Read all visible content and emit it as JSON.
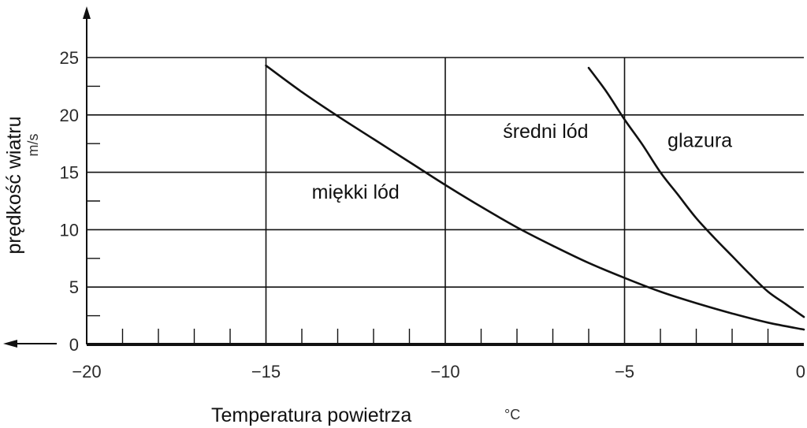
{
  "chart_data": {
    "type": "line",
    "xlabel": "Temperatura powietrza",
    "xunit": "°C",
    "ylabel": "prędkość wiatru",
    "yunit": "m/s",
    "xlim": [
      -20,
      0
    ],
    "ylim": [
      0,
      25
    ],
    "x_ticks": [
      -20,
      -15,
      -10,
      -5,
      0
    ],
    "x_tick_labels": [
      "−20",
      "−15",
      "−10",
      "−5",
      "0"
    ],
    "y_ticks": [
      0,
      5,
      10,
      15,
      20,
      25
    ],
    "y_tick_labels": [
      "0",
      "5",
      "10",
      "15",
      "20",
      "25"
    ],
    "grid": true,
    "regions": [
      {
        "label": "miękki lód",
        "x": -12.5,
        "y": 12.7
      },
      {
        "label": "średni lód",
        "x": -7.2,
        "y": 18
      },
      {
        "label": "glazura",
        "x": -2.9,
        "y": 17.2
      }
    ],
    "series": [
      {
        "x": [
          -15,
          -14,
          -13,
          -12,
          -11,
          -10,
          -9,
          -8,
          -7,
          -6,
          -5,
          -4,
          -3,
          -2,
          -1,
          0
        ],
        "y": [
          24.3,
          22.0,
          19.9,
          17.9,
          15.9,
          13.9,
          12.0,
          10.2,
          8.6,
          7.1,
          5.8,
          4.6,
          3.6,
          2.7,
          1.9,
          1.3
        ]
      },
      {
        "x": [
          -6,
          -5.5,
          -5,
          -4.5,
          -4,
          -3.5,
          -3,
          -2.5,
          -2,
          -1.5,
          -1,
          -0.5,
          0
        ],
        "y": [
          24.1,
          22.0,
          19.6,
          17.4,
          15.0,
          13.0,
          11.0,
          9.3,
          7.7,
          6.1,
          4.6,
          3.5,
          2.4
        ]
      }
    ]
  }
}
